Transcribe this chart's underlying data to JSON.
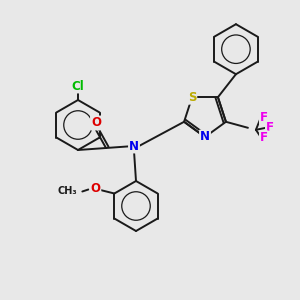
{
  "bg_color": "#e8e8e8",
  "bond_color": "#1a1a1a",
  "atom_colors": {
    "Cl": "#00bb00",
    "O": "#dd0000",
    "N": "#0000ee",
    "S": "#bbaa00",
    "F": "#ee00ee",
    "C": "#1a1a1a"
  },
  "bond_lw": 1.4,
  "font_size": 8.5
}
